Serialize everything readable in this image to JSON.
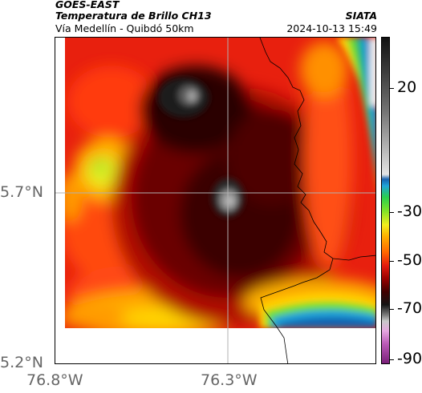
{
  "header": {
    "satellite": "GOES-EAST",
    "product": "Temperatura de Brillo CH13",
    "region": "Vía Medellín - Quibdó 50km",
    "source": "SIATA",
    "timestamp": "2024-10-13 15:49"
  },
  "axes": {
    "lat_labels": [
      "5.7°N",
      "5.2°N"
    ],
    "lon_labels": [
      "76.8°W",
      "76.3°W"
    ]
  },
  "colorbar": {
    "tick_labels": [
      "20",
      "-30",
      "-50",
      "-70",
      "-90"
    ]
  },
  "colors": {
    "gridline": "#b0b0b0",
    "border_line": "#000000",
    "axis_text": "#666666"
  }
}
